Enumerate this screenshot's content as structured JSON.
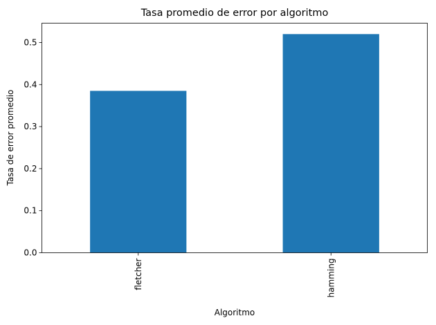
{
  "chart_data": {
    "type": "bar",
    "title": "Tasa promedio de error por algoritmo",
    "xlabel": "Algoritmo",
    "ylabel": "Tasa de error promedio",
    "categories": [
      "fletcher",
      "hamming"
    ],
    "values": [
      0.385,
      0.52
    ],
    "ylim": [
      0,
      0.546
    ],
    "yticks": [
      0.0,
      0.1,
      0.2,
      0.3,
      0.4,
      0.5
    ],
    "ytick_labels": [
      "0.0",
      "0.1",
      "0.2",
      "0.3",
      "0.4",
      "0.5"
    ],
    "bar_color": "#1f77b4",
    "grid": false,
    "legend": "none"
  }
}
